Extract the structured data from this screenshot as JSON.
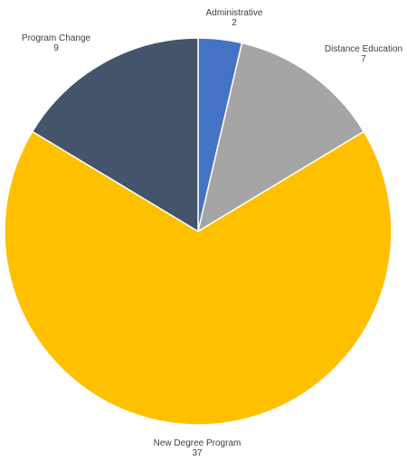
{
  "chart_data": {
    "type": "pie",
    "title": "",
    "categories": [
      "Administrative",
      "Distance Education",
      "New Degree Program",
      "Program Change"
    ],
    "values": [
      2,
      7,
      37,
      9
    ],
    "colors": [
      "#4472C4",
      "#A5A5A5",
      "#FFC000",
      "#44546A"
    ],
    "data_labels": "category name and value, outside end",
    "legend": "none",
    "start_angle_deg": 0,
    "direction": "clockwise"
  }
}
